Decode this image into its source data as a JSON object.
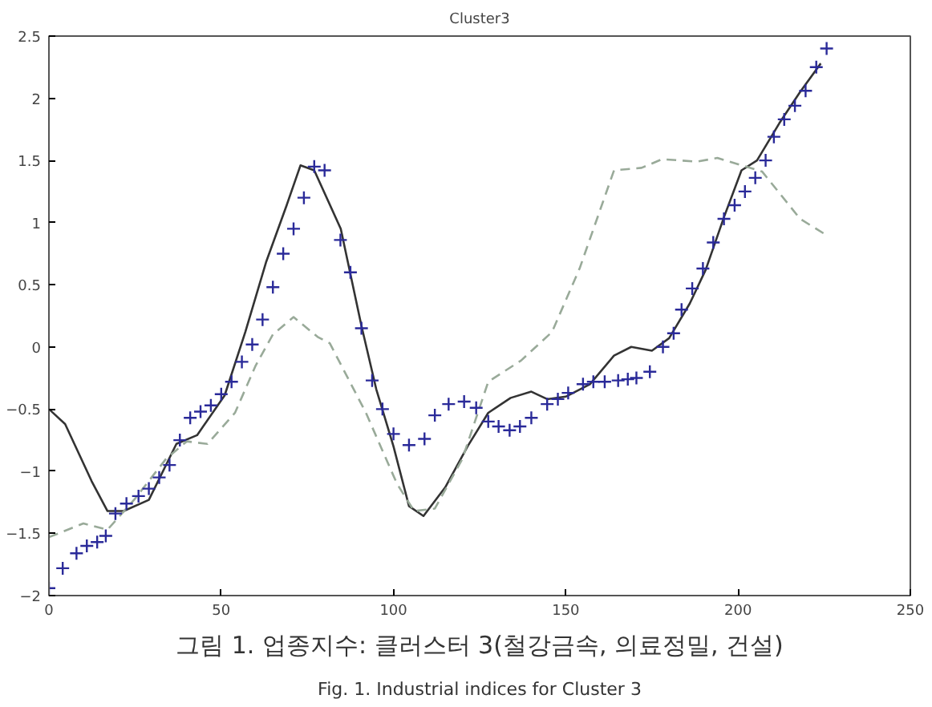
{
  "chart_data": {
    "type": "line",
    "title": "Cluster3",
    "annotations": [
      "그림 1. 업종지수: 클러스터 3(철강금속, 의료정밀, 건설)",
      "Fig. 1. Industrial indices for Cluster 3"
    ],
    "xlim": [
      0,
      250
    ],
    "xticks": [
      0,
      50,
      100,
      150,
      200,
      250
    ],
    "ylim": [
      -2,
      2.5
    ],
    "yticks": [
      -2,
      -1.5,
      -1,
      -0.5,
      0,
      0.5,
      1,
      1.5,
      2,
      2.5
    ],
    "grid": false,
    "series": [
      {
        "line_style": "solid",
        "color": "#333333",
        "x": [
          0,
          4.7,
          12.4,
          17,
          21.7,
          29,
          37,
          43,
          51,
          57,
          63,
          69,
          73,
          77,
          84.7,
          90.7,
          95,
          100,
          104.5,
          108.7,
          115,
          121.5,
          127.5,
          134,
          140,
          144.6,
          150,
          157,
          164,
          169,
          175,
          180,
          186,
          190.6,
          196,
          201,
          205.5,
          212,
          218,
          224
        ],
        "values": [
          -0.5,
          -0.62,
          -1.08,
          -1.32,
          -1.32,
          -1.23,
          -0.78,
          -0.71,
          -0.39,
          0.12,
          0.68,
          1.14,
          1.46,
          1.42,
          0.95,
          0.17,
          -0.34,
          -0.8,
          -1.28,
          -1.36,
          -1.13,
          -0.8,
          -0.53,
          -0.41,
          -0.36,
          -0.42,
          -0.4,
          -0.3,
          -0.07,
          0,
          -0.03,
          0.07,
          0.35,
          0.62,
          1.05,
          1.42,
          1.5,
          1.8,
          2.05,
          2.28
        ]
      },
      {
        "line_style": "dashed",
        "color": "#99aa99",
        "x": [
          0,
          10,
          17,
          25,
          34,
          40,
          46,
          54,
          60,
          65,
          71,
          78,
          81.5,
          92,
          101,
          106,
          112,
          120,
          127.5,
          137,
          146,
          154,
          164,
          172,
          178,
          188,
          194,
          207,
          218,
          225.6
        ],
        "values": [
          -1.53,
          -1.42,
          -1.47,
          -1.22,
          -0.9,
          -0.76,
          -0.78,
          -0.53,
          -0.15,
          0.1,
          0.24,
          0.08,
          0.03,
          -0.53,
          -1.1,
          -1.32,
          -1.3,
          -0.9,
          -0.28,
          -0.11,
          0.12,
          0.63,
          1.42,
          1.44,
          1.51,
          1.49,
          1.52,
          1.41,
          1.03,
          0.9
        ]
      },
      {
        "type": "scatter",
        "marker": "cross",
        "color": "#2a2a99",
        "x": [
          0,
          4,
          8,
          11,
          14,
          16.5,
          19.3,
          22.5,
          26,
          29,
          32,
          35,
          38,
          41,
          44,
          47,
          50,
          53,
          56,
          59,
          62,
          65,
          68,
          71,
          74,
          77,
          80,
          84.6,
          87.5,
          90.7,
          93.8,
          96.8,
          100,
          104.5,
          109,
          112,
          116,
          120.5,
          124,
          127.5,
          130.5,
          133.7,
          136.7,
          140,
          144.6,
          147.7,
          150.7,
          155,
          158,
          161.3,
          165.2,
          168,
          170.5,
          174.4,
          178.2,
          181.3,
          183.6,
          186.7,
          189.8,
          192.8,
          195.9,
          199,
          202,
          205,
          208,
          210.4,
          213.4,
          216.5,
          219.6,
          222.7,
          225.7
        ],
        "values": [
          -1.94,
          -1.78,
          -1.66,
          -1.6,
          -1.57,
          -1.52,
          -1.34,
          -1.26,
          -1.2,
          -1.14,
          -1.05,
          -0.95,
          -0.75,
          -0.57,
          -0.52,
          -0.47,
          -0.38,
          -0.28,
          -0.12,
          0.02,
          0.22,
          0.48,
          0.75,
          0.95,
          1.2,
          1.45,
          1.42,
          0.86,
          0.6,
          0.15,
          -0.27,
          -0.5,
          -0.7,
          -0.79,
          -0.74,
          -0.55,
          -0.46,
          -0.44,
          -0.49,
          -0.6,
          -0.64,
          -0.67,
          -0.64,
          -0.57,
          -0.46,
          -0.42,
          -0.37,
          -0.3,
          -0.28,
          -0.28,
          -0.27,
          -0.26,
          -0.25,
          -0.2,
          0.0,
          0.11,
          0.3,
          0.47,
          0.63,
          0.84,
          1.03,
          1.14,
          1.25,
          1.36,
          1.5,
          1.69,
          1.83,
          1.94,
          2.06,
          2.25,
          2.4
        ]
      }
    ]
  }
}
